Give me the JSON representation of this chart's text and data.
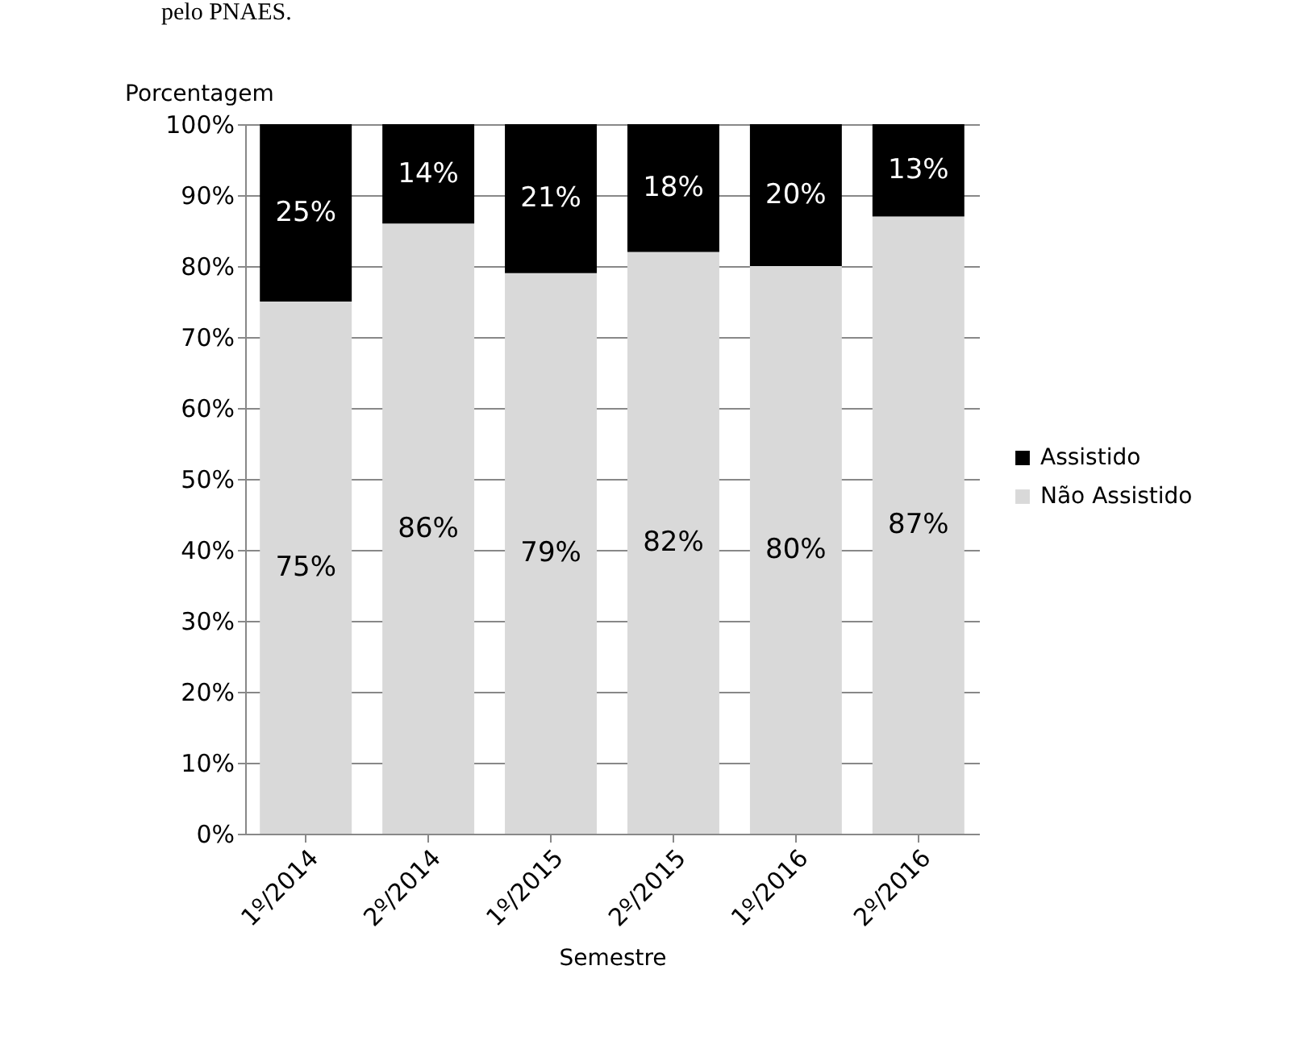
{
  "chart_data": {
    "type": "bar",
    "stacked": true,
    "xlabel": "Semestre",
    "ylabel": "Porcentagem",
    "annotations": [
      "pelo PNAES."
    ],
    "categories": [
      "1º/2014",
      "2º/2014",
      "1º/2015",
      "2º/2015",
      "1º/2016",
      "2º/2016"
    ],
    "series": [
      {
        "name": "Não Assistido",
        "color": "#d9d9d9",
        "values": [
          75,
          86,
          79,
          82,
          80,
          87
        ],
        "value_labels": [
          "75%",
          "86%",
          "79%",
          "82%",
          "80%",
          "87%"
        ]
      },
      {
        "name": "Assistido",
        "color": "#000000",
        "values": [
          25,
          14,
          21,
          18,
          20,
          13
        ],
        "value_labels": [
          "25%",
          "14%",
          "21%",
          "18%",
          "20%",
          "13%"
        ]
      }
    ],
    "ylim": [
      0,
      100
    ],
    "yticks": [
      {
        "value": 0,
        "label": "0%"
      },
      {
        "value": 10,
        "label": "10%"
      },
      {
        "value": 20,
        "label": "20%"
      },
      {
        "value": 30,
        "label": "30%"
      },
      {
        "value": 40,
        "label": "40%"
      },
      {
        "value": 50,
        "label": "50%"
      },
      {
        "value": 60,
        "label": "60%"
      },
      {
        "value": 70,
        "label": "70%"
      },
      {
        "value": 80,
        "label": "80%"
      },
      {
        "value": 90,
        "label": "90%"
      },
      {
        "value": 100,
        "label": "100%"
      }
    ],
    "grid": "y",
    "legend": "right"
  }
}
